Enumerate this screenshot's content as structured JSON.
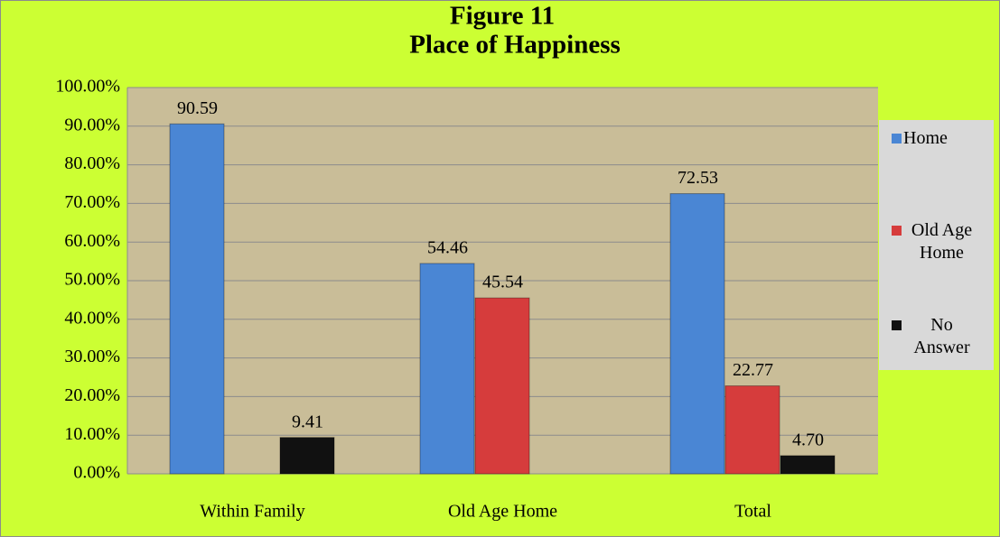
{
  "chart_data": {
    "type": "bar",
    "title": "Figure 11",
    "subtitle": "Place of Happiness",
    "categories": [
      "Within Family",
      "Old Age Home",
      "Total"
    ],
    "series": [
      {
        "name": "Home",
        "color": "#4a86d4",
        "values": [
          90.59,
          54.46,
          72.53
        ],
        "value_labels": [
          "90.59",
          "54.46",
          "72.53"
        ]
      },
      {
        "name": "Old Age Home",
        "color": "#d63c3c",
        "values": [
          null,
          45.54,
          22.77
        ],
        "value_labels": [
          null,
          "45.54",
          "22.77"
        ]
      },
      {
        "name": "No Answer",
        "color": "#111111",
        "values": [
          9.41,
          null,
          4.7
        ],
        "value_labels": [
          "9.41",
          null,
          "4.70"
        ]
      }
    ],
    "ylim": [
      0,
      100
    ],
    "yticks": [
      {
        "value": 0,
        "label": "0.00%"
      },
      {
        "value": 10,
        "label": "10.00%"
      },
      {
        "value": 20,
        "label": "20.00%"
      },
      {
        "value": 30,
        "label": "30.00%"
      },
      {
        "value": 40,
        "label": "40.00%"
      },
      {
        "value": 50,
        "label": "50.00%"
      },
      {
        "value": 60,
        "label": "60.00%"
      },
      {
        "value": 70,
        "label": "70.00%"
      },
      {
        "value": 80,
        "label": "80.00%"
      },
      {
        "value": 90,
        "label": "90.00%"
      },
      {
        "value": 100,
        "label": "100.00%"
      }
    ],
    "grid": true,
    "legend": "right"
  }
}
